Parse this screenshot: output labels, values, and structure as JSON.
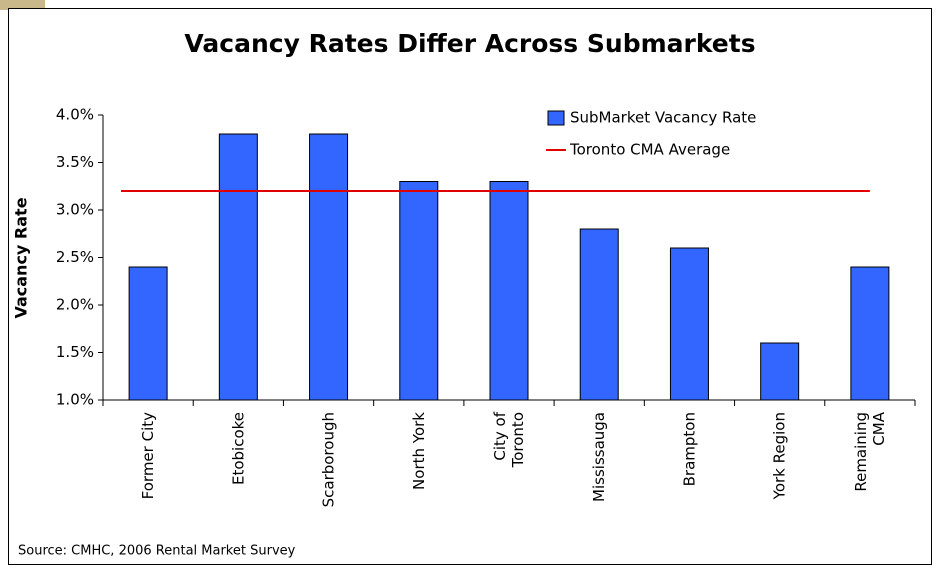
{
  "chart_data": {
    "type": "bar",
    "title": "Vacancy Rates Differ Across Submarkets",
    "y_label": "Vacancy Rate",
    "source": "Source: CMHC, 2006 Rental Market Survey",
    "categories": [
      "Former City",
      "Etobicoke",
      "Scarborough",
      "North York",
      "City of Toronto",
      "Mississauga",
      "Brampton",
      "York Region",
      "Remaining CMA"
    ],
    "series": [
      {
        "name": "SubMarket Vacancy Rate",
        "color": "#3366ff",
        "values": [
          2.4,
          3.8,
          3.8,
          3.3,
          3.3,
          2.8,
          2.6,
          1.6,
          2.4
        ]
      }
    ],
    "average": {
      "name": "Toronto CMA Average",
      "color": "#e00000",
      "value": 3.2
    },
    "ylim": [
      1,
      4
    ],
    "yticks": [
      {
        "value": 1,
        "label": "1.0%"
      },
      {
        "value": 1.5,
        "label": "1.5%"
      },
      {
        "value": 2,
        "label": "2.0%"
      },
      {
        "value": 2.5,
        "label": "2.5%"
      },
      {
        "value": 3,
        "label": "3.0%"
      },
      {
        "value": 3.5,
        "label": "3.5%"
      },
      {
        "value": 4,
        "label": "4.0%"
      }
    ],
    "legend": "top-right"
  }
}
